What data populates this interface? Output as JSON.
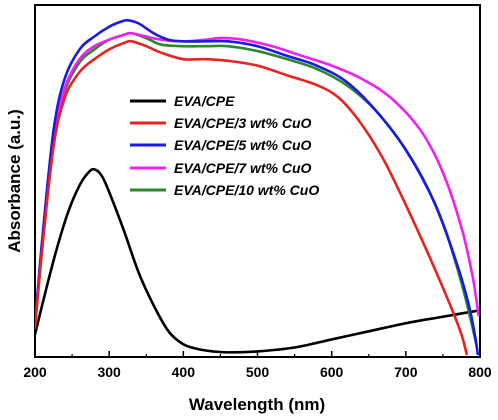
{
  "chart_data": {
    "type": "line",
    "title": "",
    "xlabel": "Wavelength (nm)",
    "ylabel": "Absorbance (a.u.)",
    "xlim": [
      200,
      800
    ],
    "ylim": [
      0,
      1.0
    ],
    "xticks": [
      "200",
      "300",
      "400",
      "500",
      "600",
      "700",
      "800"
    ],
    "yticks_shown": false,
    "grid": false,
    "legend_position": "center-right",
    "series": [
      {
        "name": "EVA/CPE",
        "color": "#000000",
        "points": [
          [
            200,
            0.06
          ],
          [
            215,
            0.2
          ],
          [
            230,
            0.33
          ],
          [
            245,
            0.44
          ],
          [
            260,
            0.52
          ],
          [
            272,
            0.56
          ],
          [
            280,
            0.57
          ],
          [
            290,
            0.55
          ],
          [
            300,
            0.5
          ],
          [
            320,
            0.38
          ],
          [
            340,
            0.25
          ],
          [
            360,
            0.15
          ],
          [
            380,
            0.07
          ],
          [
            400,
            0.03
          ],
          [
            420,
            0.015
          ],
          [
            440,
            0.008
          ],
          [
            460,
            0.005
          ],
          [
            500,
            0.008
          ],
          [
            550,
            0.02
          ],
          [
            600,
            0.045
          ],
          [
            650,
            0.07
          ],
          [
            700,
            0.095
          ],
          [
            750,
            0.115
          ],
          [
            800,
            0.135
          ]
        ]
      },
      {
        "name": "EVA/CPE/3 wt% CuO",
        "color": "#e8231f",
        "points": [
          [
            200,
            0.08
          ],
          [
            210,
            0.33
          ],
          [
            225,
            0.64
          ],
          [
            240,
            0.79
          ],
          [
            260,
            0.87
          ],
          [
            280,
            0.91
          ],
          [
            300,
            0.94
          ],
          [
            320,
            0.96
          ],
          [
            330,
            0.965
          ],
          [
            350,
            0.95
          ],
          [
            370,
            0.93
          ],
          [
            400,
            0.91
          ],
          [
            430,
            0.91
          ],
          [
            460,
            0.905
          ],
          [
            500,
            0.89
          ],
          [
            540,
            0.86
          ],
          [
            580,
            0.83
          ],
          [
            610,
            0.79
          ],
          [
            640,
            0.71
          ],
          [
            670,
            0.6
          ],
          [
            700,
            0.46
          ],
          [
            730,
            0.31
          ],
          [
            760,
            0.15
          ],
          [
            775,
            0.06
          ],
          [
            782,
            0.0
          ]
        ]
      },
      {
        "name": "EVA/CPE/5 wt% CuO",
        "color": "#1a1ae6",
        "points": [
          [
            200,
            0.09
          ],
          [
            210,
            0.36
          ],
          [
            225,
            0.69
          ],
          [
            240,
            0.85
          ],
          [
            260,
            0.94
          ],
          [
            280,
            0.98
          ],
          [
            300,
            1.01
          ],
          [
            315,
            1.025
          ],
          [
            325,
            1.03
          ],
          [
            340,
            1.02
          ],
          [
            360,
            0.99
          ],
          [
            380,
            0.97
          ],
          [
            400,
            0.965
          ],
          [
            430,
            0.965
          ],
          [
            460,
            0.965
          ],
          [
            500,
            0.95
          ],
          [
            540,
            0.92
          ],
          [
            580,
            0.89
          ],
          [
            620,
            0.84
          ],
          [
            660,
            0.75
          ],
          [
            700,
            0.63
          ],
          [
            740,
            0.46
          ],
          [
            770,
            0.27
          ],
          [
            785,
            0.15
          ],
          [
            793,
            0.06
          ],
          [
            797,
            0.0
          ]
        ]
      },
      {
        "name": "EVA/CPE/7 wt% CuO",
        "color": "#f21ff2",
        "points": [
          [
            200,
            0.09
          ],
          [
            210,
            0.35
          ],
          [
            225,
            0.66
          ],
          [
            240,
            0.82
          ],
          [
            260,
            0.91
          ],
          [
            280,
            0.95
          ],
          [
            300,
            0.97
          ],
          [
            320,
            0.985
          ],
          [
            330,
            0.99
          ],
          [
            350,
            0.98
          ],
          [
            370,
            0.97
          ],
          [
            400,
            0.965
          ],
          [
            430,
            0.97
          ],
          [
            450,
            0.975
          ],
          [
            480,
            0.97
          ],
          [
            520,
            0.95
          ],
          [
            560,
            0.92
          ],
          [
            600,
            0.89
          ],
          [
            640,
            0.85
          ],
          [
            680,
            0.79
          ],
          [
            720,
            0.69
          ],
          [
            750,
            0.56
          ],
          [
            775,
            0.39
          ],
          [
            790,
            0.24
          ],
          [
            798,
            0.12
          ]
        ]
      },
      {
        "name": "EVA/CPE/10 wt% CuO",
        "color": "#2a8a2a",
        "points": [
          [
            200,
            0.08
          ],
          [
            210,
            0.34
          ],
          [
            225,
            0.65
          ],
          [
            240,
            0.81
          ],
          [
            260,
            0.9
          ],
          [
            280,
            0.94
          ],
          [
            300,
            0.97
          ],
          [
            320,
            0.985
          ],
          [
            330,
            0.99
          ],
          [
            350,
            0.975
          ],
          [
            370,
            0.955
          ],
          [
            400,
            0.95
          ],
          [
            430,
            0.95
          ],
          [
            460,
            0.95
          ],
          [
            500,
            0.935
          ],
          [
            540,
            0.91
          ],
          [
            580,
            0.88
          ],
          [
            620,
            0.83
          ],
          [
            660,
            0.75
          ],
          [
            700,
            0.63
          ],
          [
            730,
            0.51
          ],
          [
            755,
            0.37
          ],
          [
            775,
            0.22
          ],
          [
            787,
            0.11
          ],
          [
            795,
            0.03
          ]
        ]
      }
    ]
  }
}
